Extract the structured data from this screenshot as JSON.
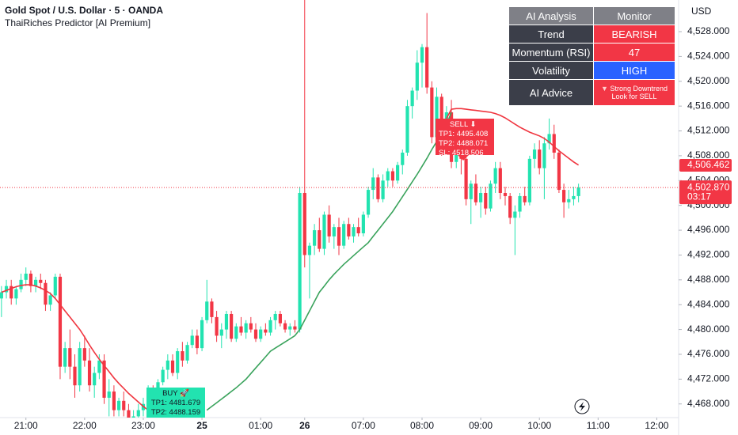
{
  "chart_data": {
    "type": "candlestick",
    "title": "Gold Spot / U.S. Dollar · 5 · OANDA",
    "subtitle": "ThaiRiches Predictor [AI Premium]",
    "currency": "USD",
    "up_color": "#22e3b0",
    "down_color": "#f23645",
    "open": [
      4485,
      4486,
      4487,
      4485,
      4486.5,
      4488,
      4489,
      4487,
      4488,
      4487.5,
      4484,
      4485.5,
      4488.5,
      4474,
      4477,
      4474,
      4471,
      4477,
      4475,
      4471,
      4473,
      4475,
      4469,
      4470,
      4467,
      4468.5,
      4467,
      4465,
      4466,
      4467,
      4468,
      4470.5,
      4469,
      4471.5,
      4473.5,
      4475,
      4473,
      4476.5,
      4475,
      4477.5,
      4479,
      4477,
      4481.5,
      4484.5,
      4482,
      4479,
      4480,
      4482.5,
      4478.5,
      4480.5,
      4479.5,
      4481,
      4480,
      4478.5,
      4480,
      4479.5,
      4481.5,
      4482.5,
      4481,
      4480,
      4480.5,
      4480,
      4502,
      4492,
      4493.5,
      4496,
      4493,
      4498.5,
      4495,
      4496.5,
      4493.5,
      4497,
      4495,
      4496.5,
      4495.5,
      4498.5,
      4502.5,
      4504.5,
      4501,
      4504,
      4505.5,
      4504,
      4506.5,
      4508.5,
      4516,
      4518.5,
      4523,
      4525.5,
      4519,
      4511,
      4517.5,
      4509,
      4515,
      4507,
      4509,
      4507.5,
      4501,
      4503.5,
      4500.5,
      4502,
      4499.5,
      4503.5,
      4506,
      4502,
      4501.5,
      4498,
      4499,
      4501.5,
      4500.5,
      4507.5,
      4509,
      4506,
      4510,
      4511.5,
      4508.5,
      4502.5,
      4500.5,
      4501,
      4501.5
    ],
    "high": [
      4487,
      4488,
      4488,
      4487,
      4489,
      4490,
      4489.5,
      4488.5,
      4489,
      4488,
      4486,
      4489,
      4489,
      4478,
      4480,
      4476,
      4478,
      4479,
      4477,
      4474,
      4476,
      4476,
      4472,
      4471,
      4469,
      4470,
      4468,
      4467,
      4468,
      4469,
      4471,
      4471,
      4472,
      4474,
      4476,
      4476,
      4477,
      4478,
      4478,
      4480,
      4480,
      4482,
      4488,
      4485,
      4483,
      4481,
      4483,
      4483,
      4481,
      4482,
      4481.5,
      4482,
      4481,
      4480.5,
      4481,
      4482,
      4483,
      4483,
      4481.5,
      4481,
      4481.5,
      4503,
      4540,
      4494,
      4497,
      4498,
      4499,
      4500,
      4497,
      4498,
      4497.5,
      4498,
      4497,
      4498,
      4499,
      4503,
      4506,
      4505,
      4505,
      4506,
      4506,
      4507,
      4509,
      4517,
      4519,
      4525,
      4526,
      4531,
      4520,
      4519,
      4518,
      4516,
      4517,
      4510,
      4510,
      4508,
      4504,
      4505,
      4503,
      4503,
      4504,
      4507,
      4507,
      4503,
      4502,
      4500,
      4502,
      4503,
      4508,
      4510,
      4510.5,
      4511,
      4514,
      4513,
      4509,
      4503.5,
      4502.5,
      4503,
      4503.5
    ],
    "low": [
      4482,
      4485,
      4484,
      4484,
      4486,
      4487,
      4486,
      4486,
      4486.5,
      4483,
      4483,
      4485,
      4472,
      4473,
      4472,
      4469,
      4470,
      4474,
      4470,
      4469,
      4472,
      4468,
      4466,
      4466,
      4466,
      4466,
      4464,
      4464,
      4465,
      4466,
      4467,
      4468,
      4468,
      4471,
      4472,
      4472.5,
      4472,
      4474,
      4474.5,
      4477,
      4476,
      4476.5,
      4481,
      4481,
      4478,
      4477,
      4478.5,
      4478,
      4478,
      4479,
      4478.5,
      4479.5,
      4478,
      4478,
      4479,
      4479,
      4480,
      4480.5,
      4479.5,
      4479,
      4479.5,
      4479.5,
      4490,
      4485,
      4492,
      4492.5,
      4492,
      4494,
      4493,
      4492,
      4493,
      4494.5,
      4494,
      4495,
      4495,
      4498,
      4501,
      4500.5,
      4500.5,
      4503,
      4503,
      4503.5,
      4505,
      4508,
      4514,
      4517,
      4519,
      4518,
      4510,
      4510,
      4508,
      4508.5,
      4506,
      4506,
      4505,
      4500,
      4497,
      4500,
      4498,
      4498.5,
      4499,
      4502,
      4501,
      4500,
      4497,
      4492,
      4498,
      4500,
      4500,
      4506,
      4505,
      4501,
      4509,
      4507.5,
      4502,
      4498,
      4499.5,
      4500,
      4500.5
    ],
    "close": [
      4486,
      4487,
      4485,
      4486.5,
      4488,
      4489,
      4487,
      4488,
      4487.5,
      4484,
      4485.5,
      4488.5,
      4474,
      4477,
      4474,
      4471,
      4477,
      4475,
      4471,
      4473,
      4475,
      4469,
      4470,
      4467,
      4468.5,
      4467,
      4465,
      4466,
      4467,
      4468,
      4470.5,
      4469,
      4471.5,
      4473.5,
      4475,
      4473,
      4476.5,
      4475,
      4477.5,
      4479,
      4477,
      4481.5,
      4484.5,
      4482,
      4479,
      4480,
      4482.5,
      4478.5,
      4480.5,
      4479.5,
      4481,
      4480,
      4478.5,
      4480,
      4479.5,
      4481.5,
      4482.5,
      4481,
      4480,
      4480.5,
      4480,
      4502,
      4492,
      4493.5,
      4496,
      4493,
      4498.5,
      4495,
      4496.5,
      4493.5,
      4497,
      4495,
      4496.5,
      4495.5,
      4498.5,
      4502.5,
      4504.5,
      4501,
      4504,
      4505.5,
      4504,
      4506.5,
      4508.5,
      4516,
      4518.5,
      4523,
      4525.5,
      4519,
      4511,
      4517.5,
      4509,
      4515,
      4507,
      4509,
      4507.5,
      4501,
      4503.5,
      4500.5,
      4502,
      4499.5,
      4503.5,
      4506,
      4502,
      4501.5,
      4498,
      4499,
      4501.5,
      4500.5,
      4507.5,
      4509,
      4506,
      4510,
      4511.5,
      4508.5,
      4502.5,
      4500.5,
      4501,
      4501.5,
      4502.87
    ],
    "series": [
      {
        "color": "#f0353f",
        "values": [
          4486,
          4486.3,
          4486.6,
          4486.9,
          4487.1,
          4487.2,
          4487.2,
          4487,
          4486.7,
          4486.3,
          4485.8,
          4485,
          4484,
          4483,
          4482,
          4481,
          4480,
          4478.8,
          4477.5,
          4476.3,
          4475.2,
          4474.2,
          4473.2,
          4472.2,
          4471.3,
          4470.5,
          4469.7,
          4469,
          4468.3,
          4467.6,
          4467,
          null,
          null,
          null,
          null,
          null,
          null,
          null,
          null,
          null,
          null,
          null,
          null,
          null,
          null,
          null,
          null,
          null,
          null,
          null,
          null,
          null,
          null,
          null,
          null,
          null,
          null,
          null,
          null,
          null,
          null,
          null,
          null,
          null,
          null,
          null,
          null,
          null,
          null,
          null,
          null,
          null,
          null,
          null,
          null,
          null,
          null,
          null,
          null,
          null,
          null,
          null,
          null,
          null,
          null,
          null,
          null,
          null,
          null,
          null,
          null,
          4514,
          4515.5,
          4515.6,
          4515.6,
          4515.5,
          4515.4,
          4515.3,
          4515.2,
          4515.1,
          4515,
          4514.8,
          4514.5,
          4514.1,
          4513.6,
          4513.1,
          4512.6,
          4512.2,
          4511.8,
          4511.5,
          4511.2,
          4510.8,
          4510.2,
          4509.5,
          4508.8,
          4508.2,
          4507.6,
          4507,
          4506.5
        ]
      },
      {
        "color": "#3aa35c",
        "values": [
          null,
          null,
          null,
          null,
          null,
          null,
          null,
          null,
          null,
          null,
          null,
          null,
          null,
          null,
          null,
          null,
          null,
          null,
          null,
          null,
          null,
          null,
          null,
          null,
          null,
          null,
          null,
          null,
          null,
          null,
          null,
          null,
          null,
          null,
          null,
          null,
          null,
          null,
          null,
          null,
          null,
          null,
          4467,
          4467.6,
          4468.2,
          4468.8,
          4469.4,
          4470,
          4470.6,
          4471.3,
          4472,
          4472.9,
          4473.8,
          4474.7,
          4475.6,
          4476.5,
          4477,
          4477.5,
          4478,
          4478.5,
          4479,
          4480,
          4481.5,
          4483,
          4484.5,
          4486,
          4487,
          4488,
          4488.9,
          4489.7,
          4490.5,
          4491.2,
          4491.9,
          4492.6,
          4493.3,
          4494,
          4495,
          4496,
          4497,
          4498,
          4499,
          4500.2,
          4501.4,
          4502.6,
          4503.8,
          4505,
          4506.3,
          4507.6,
          4509,
          4510.3,
          4511.6,
          4513,
          4515,
          null,
          null,
          null,
          null,
          null,
          null,
          null,
          null,
          null,
          null,
          null,
          null,
          null,
          null,
          null,
          null,
          null,
          null,
          null,
          null,
          null,
          null,
          null,
          null,
          null,
          null
        ]
      }
    ],
    "xlim": [
      -0.3,
      138.3
    ],
    "xticks": [
      {
        "value": 5,
        "label": "21:00"
      },
      {
        "value": 17,
        "label": "22:00"
      },
      {
        "value": 29,
        "label": "23:00"
      },
      {
        "value": 41,
        "label": "25"
      },
      {
        "value": 53,
        "label": "01:00"
      },
      {
        "value": 62,
        "label": "26"
      },
      {
        "value": 74,
        "label": "07:00"
      },
      {
        "value": 86,
        "label": "08:00"
      },
      {
        "value": 98,
        "label": "09:00"
      },
      {
        "value": 110,
        "label": "10:00"
      },
      {
        "value": 122,
        "label": "11:00"
      },
      {
        "value": 134,
        "label": "12:00"
      }
    ],
    "ylim": [
      4465.8,
      4533.1
    ],
    "yticks": [
      {
        "value": 4468,
        "label": "4,468.000"
      },
      {
        "value": 4472,
        "label": "4,472.000"
      },
      {
        "value": 4476,
        "label": "4,476.000"
      },
      {
        "value": 4480,
        "label": "4,480.000"
      },
      {
        "value": 4484,
        "label": "4,484.000"
      },
      {
        "value": 4488,
        "label": "4,488.000"
      },
      {
        "value": 4492,
        "label": "4,492.000"
      },
      {
        "value": 4496,
        "label": "4,496.000"
      },
      {
        "value": 4500,
        "label": "4,500.000"
      },
      {
        "value": 4504,
        "label": "4,504.000"
      },
      {
        "value": 4508,
        "label": "4,508.000"
      },
      {
        "value": 4512,
        "label": "4,512.000"
      },
      {
        "value": 4516,
        "label": "4,516.000"
      },
      {
        "value": 4520,
        "label": "4,520.000"
      },
      {
        "value": 4524,
        "label": "4,524.000"
      },
      {
        "value": 4528,
        "label": "4,528.000"
      }
    ],
    "price_labels": [
      {
        "value": 4506.462,
        "label": "4,506.462"
      },
      {
        "value": 4502.87,
        "label": "4,502.870",
        "countdown": "03:17"
      }
    ]
  },
  "panel": {
    "header": [
      "AI Analysis",
      "Monitor"
    ],
    "rows": [
      [
        "Trend",
        "BEARISH"
      ],
      [
        "Momentum (RSI)",
        "47"
      ],
      [
        "Volatility",
        "HIGH"
      ]
    ],
    "advice": {
      "label": "AI Advice",
      "lines": [
        "Strong Downtrend",
        "Look for SELL"
      ]
    }
  },
  "signals": {
    "buy": {
      "title": "BUY 🚀",
      "lines": [
        "TP1: 4481.679",
        "TP2: 4488.159"
      ]
    },
    "sell": {
      "title": "SELL ⬇",
      "lines": [
        "TP1: 4495.408",
        "TP2: 4488.071",
        "SL: 4518.506"
      ]
    }
  }
}
